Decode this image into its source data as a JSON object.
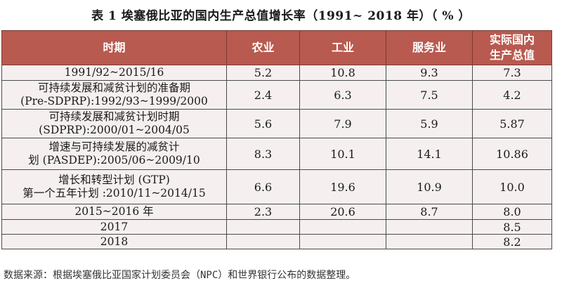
{
  "title": "表 1  埃塞俄比亚的国内生产总值增长率（1991~ 2018 年）（ % ）",
  "headers": {
    "period": "时期",
    "agriculture": "农业",
    "industry": "工业",
    "services": "服务业",
    "gdp_line1": "实际国内",
    "gdp_line2": "生产总值"
  },
  "rows": [
    {
      "period_line1": "1991/92~2015/16",
      "period_line2": "",
      "agriculture": "5.2",
      "industry": "10.8",
      "services": "9.3",
      "gdp": "7.3"
    },
    {
      "period_line1": "可持续发展和减贫计划的准备期",
      "period_line2": "(Pre-SDPRP):1992/93~1999/2000",
      "agriculture": "2.4",
      "industry": "6.3",
      "services": "7.5",
      "gdp": "4.2"
    },
    {
      "period_line1": "可持续发展和减贫计划时期",
      "period_line2": "(SDPRP):2000/01~2004/05",
      "agriculture": "5.6",
      "industry": "7.9",
      "services": "5.9",
      "gdp": "5.87"
    },
    {
      "period_line1": "增速与可持续发展的减贫计",
      "period_line2": "划 (PASDEP):2005/06~2009/10",
      "agriculture": "8.3",
      "industry": "10.1",
      "services": "14.1",
      "gdp": "10.86"
    },
    {
      "period_line1": "增长和转型计划 (GTP)",
      "period_line2": "第一个五年计划 :2010/11~2014/15",
      "agriculture": "6.6",
      "industry": "19.6",
      "services": "10.9",
      "gdp": "10.0"
    },
    {
      "period_line1": "2015~2016 年",
      "period_line2": "",
      "agriculture": "2.3",
      "industry": "20.6",
      "services": "8.7",
      "gdp": "8.0"
    },
    {
      "period_line1": "2017",
      "period_line2": "",
      "agriculture": "",
      "industry": "",
      "services": "",
      "gdp": "8.5"
    },
    {
      "period_line1": "2018",
      "period_line2": "",
      "agriculture": "",
      "industry": "",
      "services": "",
      "gdp": "8.2"
    }
  ],
  "source": "数据来源：根据埃塞俄比亚国家计划委员会（NPC）和世界银行公布的数据整理。",
  "colors": {
    "header_bg": "#b85a4f",
    "header_text": "#ffffff",
    "cell_bg": "#f5f0ef"
  }
}
